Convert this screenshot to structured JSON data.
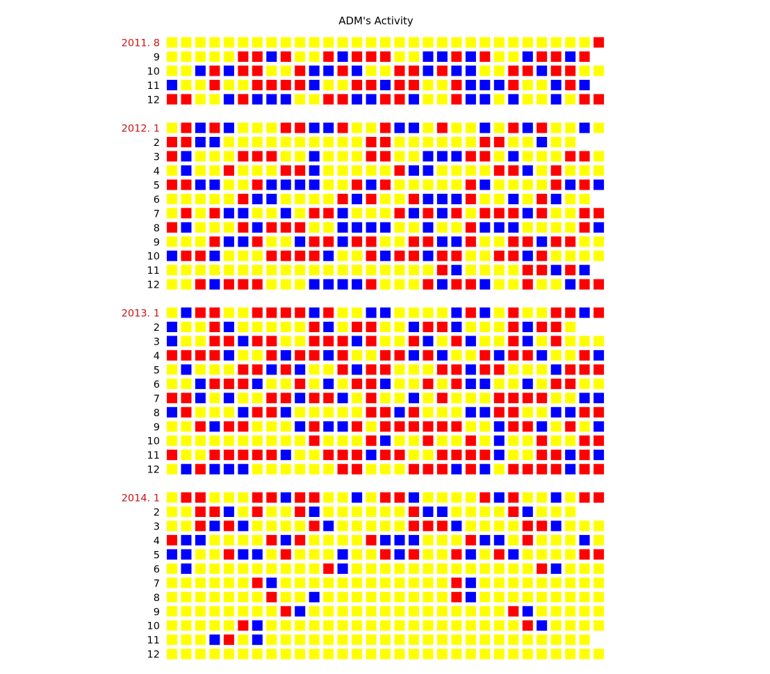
{
  "chart_data": {
    "type": "heatmap",
    "title": "ADM's Activity",
    "legend": "none",
    "grid": false,
    "colors": {
      "Y": "#ffff00",
      "R": "#ff0000",
      "B": "#0000ff",
      "label_year": "#cc1111",
      "label_month": "#000000"
    },
    "cell_values_note": "",
    "blocks": [
      {
        "year": 2011,
        "rows": [
          {
            "label": "2011. 8",
            "cells": "YYYYYYYYYYYYYYYYYYYYYYYYYYYYYYR"
          },
          {
            "label": "9",
            "cells": "YYYYYRRBRYYRBRRRYYBBRBRYYBRRBR"
          },
          {
            "label": "10",
            "cells": "YYBRBRRYYRBBRBYYRRBRBBYYRRBRRYYR"
          },
          {
            "label": "11",
            "cells": "BYYRYYRRRRBYYRRBRRYYRBBBRYYBRB"
          },
          {
            "label": "12",
            "cells": "RRYYBRBBBYYRRBBRRBYYRBBYBYYBYRRBRYYRRBRYRR"
          }
        ]
      },
      {
        "year": 2012,
        "rows": [
          {
            "label": "2012. 1",
            "cells": "YRBRBYYYRRBBRYYRBBYRYYBYRBRYYBY"
          },
          {
            "label": "2",
            "cells": "RRBBYYYYYYYYYYRRYYYYYYRRYYBYY"
          },
          {
            "label": "3",
            "cells": "RBYYYRRRYYBYYYRRYYBBBRRYBYYYRRY"
          },
          {
            "label": "4",
            "cells": "YBYYRYYYRRBYYYYYRBBYYYYRRBYRYYYB"
          },
          {
            "label": "5",
            "cells": "RRBBYYRBBBBYYRBRYYYYYRBYYYYRBRB"
          },
          {
            "label": "6",
            "cells": "YYYYYRBBYYYYRBRYYRBBBRYYBYRBYY"
          },
          {
            "label": "7",
            "cells": "YRYRBBYYBYRRBYYYRBRBRYRRRBRYYRR"
          },
          {
            "label": "8",
            "cells": "RBYYYRBRRRYYBBBBYYBYYRBBBYYYYRBB"
          },
          {
            "label": "9",
            "cells": "YYYRBBRYYBRRBRRYYRRBBRYYRRBRRYY"
          },
          {
            "label": "10",
            "cells": "BRRBYYYRRRRBYYRBRRBRRYYRRBRYYYYB"
          },
          {
            "label": "11",
            "cells": "YYYYYYYYYYYYYYYYYYYRBYYYYRRBRB"
          },
          {
            "label": "12",
            "cells": "YYRBRRRYYYBBBBRYYYRBRRBYYRYYBRRYYR"
          }
        ]
      },
      {
        "year": 2013,
        "rows": [
          {
            "label": "2013. 1",
            "cells": "YBRRYYRRRRBRYYBBYYYYBRBYRYYRRBR"
          },
          {
            "label": "2",
            "cells": "BYYRBYYYYYRBYRRYYBRRBYYYRBRRY"
          },
          {
            "label": "3",
            "cells": "BYYRRBRRYYRRRBRYYRBYRBYYRBYRYYY"
          },
          {
            "label": "4",
            "cells": "RRRRBYYRBRRBRYYRRBRBYYRBRRBYYRB"
          },
          {
            "label": "5",
            "cells": "YBYYYRRBRBYYRBRRYYYRRBRRYYYBRRR"
          },
          {
            "label": "6",
            "cells": "YYBRRRBYYRYBYRRBYYRYRBBYYBYRRYY"
          },
          {
            "label": "7",
            "cells": "RRBYBYYRRBRRBYRYYBYRYYYRRRRYYBBR"
          },
          {
            "label": "8",
            "cells": "BRYYYBRRBYYYYYRRBRYYYBBRRYYBBRRY"
          },
          {
            "label": "9",
            "cells": "YYRBRRYYYBRBBRYRRRRRRYYBRRBYRYBY"
          },
          {
            "label": "10",
            "cells": "YYYYYYYYYYRYYYRBYYRYYRYBYYRYYRRRB"
          },
          {
            "label": "11",
            "cells": "RYYRRRRRBYYRRRBRRYYRRRRBYYRRBRBY"
          },
          {
            "label": "12",
            "cells": "YBRBBBYYYYYYRRYYYRRRBRBYRRRRBRRR"
          }
        ]
      },
      {
        "year": 2014,
        "rows": [
          {
            "label": "2014. 1",
            "cells": "YRRYYYRRBRRYYBYRRBYYYYRBRYYBYRR"
          },
          {
            "label": "2",
            "cells": "YYRRBYRYYRBYYYYYYRBBYYYYRBYYY"
          },
          {
            "label": "3",
            "cells": "YYRBRBYYYYRBYYYYYRRRBYYYYRRBYYYY"
          },
          {
            "label": "4",
            "cells": "RBBYYYYRBRYYYYRBBBYYYRBBYRYYYBYR"
          },
          {
            "label": "5",
            "cells": "BBYYRBBYRYYYBYYRBRYYRBYRBYYYYRRY"
          },
          {
            "label": "6",
            "cells": "YBYYYYYYYYYRBYYYYYYYYYYYYYRBYYY"
          },
          {
            "label": "7",
            "cells": "YYYYYYRBYYYYYYYYYYYYRBYYYYYYYYYY"
          },
          {
            "label": "8",
            "cells": "YYYYYYYRYYBYYYYYYYYYRBYYYYYYYYYY"
          },
          {
            "label": "9",
            "cells": "YYYYYYYYRBYYYYYYYYYYYYYYRBYYYYY"
          },
          {
            "label": "10",
            "cells": "YYYYYRBYYYYYYYYYYYYYYYYYYRBYYYYY"
          },
          {
            "label": "11",
            "cells": "YYYBRYBYYYYYYYYYYYYYYYYYYYYYYY"
          },
          {
            "label": "12",
            "cells": "YYYYYYYYYYYYYYYYYYYYYYYYYYYYYYYY"
          }
        ]
      }
    ]
  }
}
